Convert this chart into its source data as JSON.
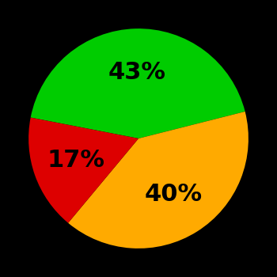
{
  "slices": [
    43,
    40,
    17
  ],
  "colors": [
    "#00cc00",
    "#ffaa00",
    "#dd0000"
  ],
  "labels": [
    "43%",
    "40%",
    "17%"
  ],
  "background_color": "#000000",
  "text_color": "#000000",
  "font_size": 22,
  "font_weight": "bold",
  "startangle": 169
}
